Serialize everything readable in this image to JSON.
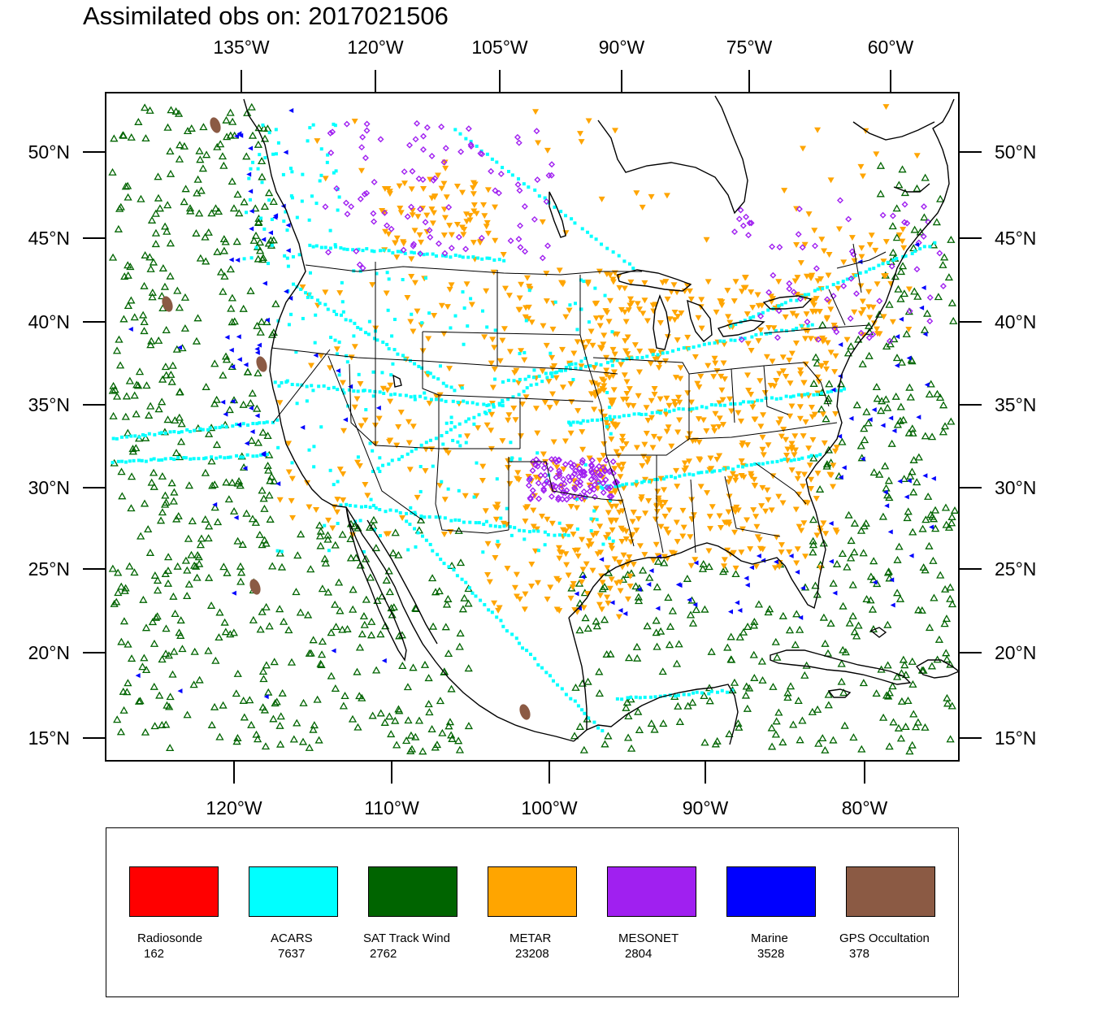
{
  "title": "Assimilated obs on: 2017021506",
  "top_axis_labels": [
    "135°W",
    "120°W",
    "105°W",
    "90°W",
    "75°W",
    "60°W"
  ],
  "bottom_axis_labels": [
    "120°W",
    "110°W",
    "100°W",
    "90°W",
    "80°W"
  ],
  "lat_labels": [
    "50°N",
    "45°N",
    "40°N",
    "35°N",
    "30°N",
    "25°N",
    "20°N",
    "15°N"
  ],
  "legend": [
    {
      "name": "Radiosonde",
      "count": "162",
      "color": "#ff0000"
    },
    {
      "name": "ACARS",
      "count": "7637",
      "color": "#00ffff"
    },
    {
      "name": "SAT Track Wind",
      "count": "2762",
      "color": "#006400"
    },
    {
      "name": "METAR",
      "count": "23208",
      "color": "#ffa500"
    },
    {
      "name": "MESONET",
      "count": "2804",
      "color": "#a020f0"
    },
    {
      "name": "Marine",
      "count": "3528",
      "color": "#0000ff"
    },
    {
      "name": "GPS Occultation",
      "count": "378",
      "color": "#8b5a44"
    }
  ]
}
